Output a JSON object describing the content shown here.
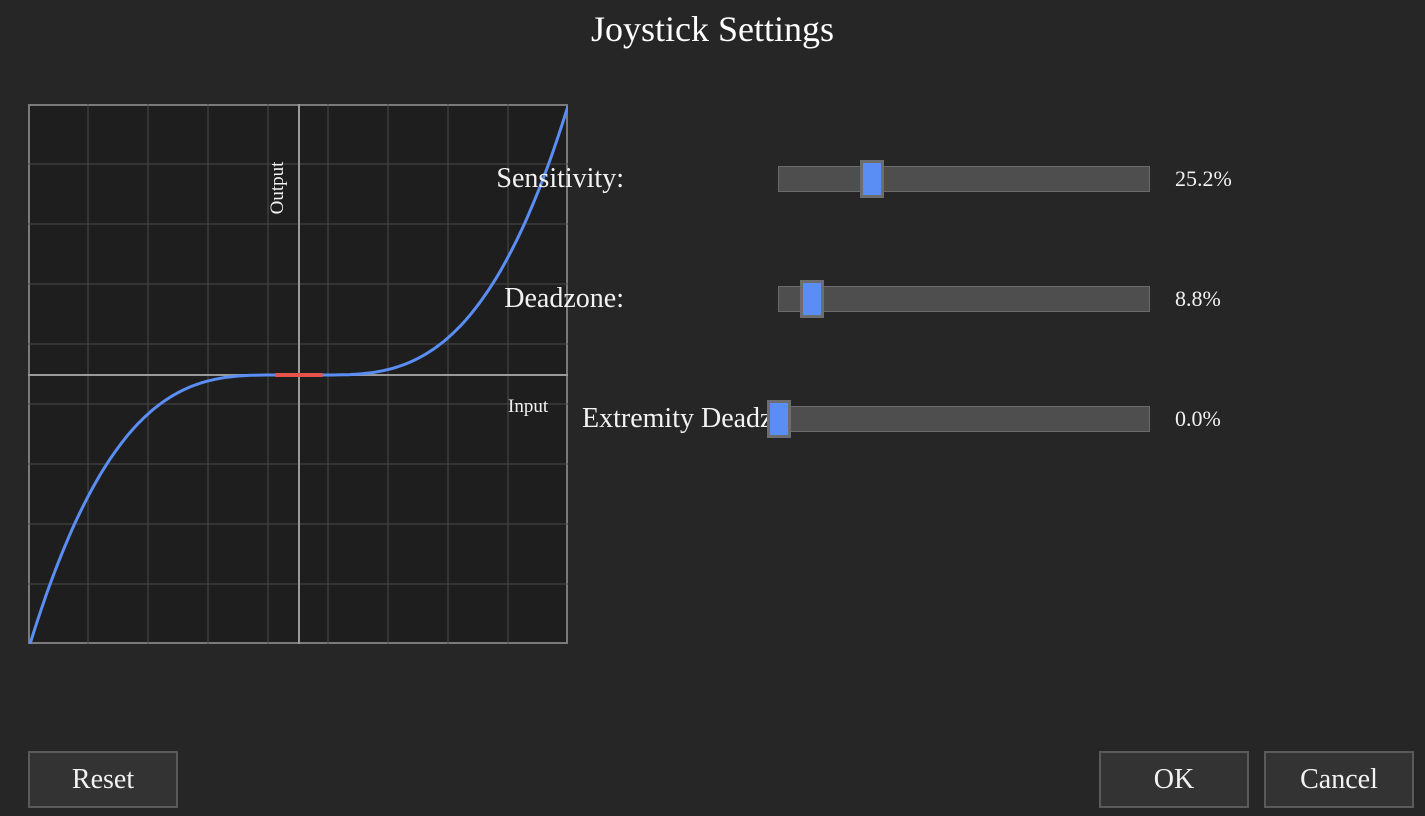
{
  "window": {
    "title": "Joystick Settings"
  },
  "graph": {
    "x_label": "Input",
    "y_label": "Output",
    "curve_color": "#5b8ef4",
    "deadzone_color": "#e5534b",
    "grid_color": "#4a4a4a",
    "axis_color": "#9a9a9a"
  },
  "settings": {
    "sensitivity": {
      "label": "Sensitivity:",
      "value_text": "25.2%",
      "value": 0.252
    },
    "deadzone": {
      "label": "Deadzone:",
      "value_text": "8.8%",
      "value": 0.088
    },
    "extremity": {
      "label": "Extremity Deadzone:",
      "value_text": "0.0%",
      "value": 0.0
    }
  },
  "buttons": {
    "reset": "Reset",
    "ok": "OK",
    "cancel": "Cancel"
  },
  "colors": {
    "background": "#262626",
    "panel": "#1e1e1e",
    "accent": "#5b8ef4"
  }
}
